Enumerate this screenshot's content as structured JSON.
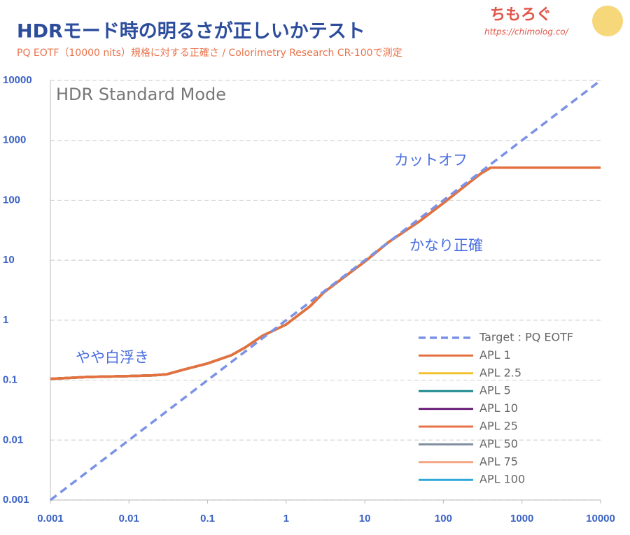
{
  "header": {
    "title": "HDRモード時の明るさが正しいかテスト",
    "subtitle": "PQ EOTF（10000 nits）規格に対する正確さ / Colorimetry Research CR-100で測定",
    "logo": "ちもろぐ",
    "url": "https://chimolog.co/"
  },
  "chart_data": {
    "type": "line",
    "plot_label": "HDR Standard Mode",
    "annotations": [
      "カットオフ",
      "かなり正確",
      "やや白浮き"
    ],
    "log_x": true,
    "log_y": true,
    "grid": true,
    "legend": "lower right",
    "x": [
      0.001,
      0.003,
      0.01,
      0.02,
      0.03,
      0.05,
      0.1,
      0.2,
      0.3,
      0.5,
      1,
      2,
      3,
      5,
      10,
      20,
      50,
      100,
      200,
      300,
      400,
      1000,
      10000
    ],
    "series": [
      {
        "name": "Target : PQ EOTF",
        "color": "#7b92e6",
        "dashed": true,
        "values": [
          0.001,
          0.003,
          0.01,
          0.02,
          0.03,
          0.05,
          0.1,
          0.2,
          0.3,
          0.5,
          1,
          2,
          3,
          5,
          10,
          20,
          50,
          100,
          200,
          300,
          400,
          1000,
          10000
        ]
      },
      {
        "name": "APL 1",
        "color": "#e5703f",
        "values": [
          0.105,
          0.113,
          0.117,
          0.12,
          0.125,
          0.15,
          0.19,
          0.26,
          0.35,
          0.55,
          0.85,
          1.7,
          2.9,
          4.8,
          9.5,
          20,
          45,
          90,
          185,
          280,
          350,
          350,
          350
        ]
      },
      {
        "name": "APL 2.5",
        "color": "#f2c12e",
        "values": [
          0.105,
          0.113,
          0.117,
          0.12,
          0.125,
          0.15,
          0.19,
          0.26,
          0.35,
          0.55,
          0.85,
          1.7,
          2.9,
          4.8,
          9.5,
          20,
          45,
          90,
          185,
          280,
          350,
          350,
          350
        ]
      },
      {
        "name": "APL 5",
        "color": "#1f8a8f",
        "values": [
          0.105,
          0.113,
          0.117,
          0.12,
          0.125,
          0.15,
          0.19,
          0.26,
          0.35,
          0.55,
          0.85,
          1.7,
          2.9,
          4.8,
          9.5,
          20,
          45,
          90,
          185,
          280,
          350,
          350,
          350
        ]
      },
      {
        "name": "APL 10",
        "color": "#6a1f7a",
        "values": [
          0.105,
          0.113,
          0.117,
          0.12,
          0.125,
          0.15,
          0.19,
          0.26,
          0.35,
          0.55,
          0.85,
          1.7,
          2.9,
          4.8,
          9.5,
          20,
          45,
          90,
          185,
          280,
          350,
          350,
          350
        ]
      },
      {
        "name": "APL 25",
        "color": "#e8734a",
        "values": [
          0.105,
          0.113,
          0.117,
          0.12,
          0.125,
          0.15,
          0.19,
          0.26,
          0.35,
          0.55,
          0.85,
          1.7,
          2.9,
          4.8,
          9.5,
          20,
          45,
          90,
          185,
          280,
          350,
          350,
          350
        ]
      },
      {
        "name": "APL 50",
        "color": "#7f8fa0",
        "values": [
          0.105,
          0.113,
          0.117,
          0.12,
          0.125,
          0.15,
          0.19,
          0.26,
          0.35,
          0.55,
          0.85,
          1.7,
          2.9,
          4.8,
          9.5,
          20,
          45,
          90,
          185,
          280,
          350,
          350,
          350
        ]
      },
      {
        "name": "APL 75",
        "color": "#f4a582",
        "values": [
          0.105,
          0.113,
          0.117,
          0.12,
          0.125,
          0.15,
          0.19,
          0.26,
          0.35,
          0.55,
          0.85,
          1.7,
          2.9,
          4.8,
          9.5,
          20,
          45,
          90,
          185,
          280,
          350,
          350,
          350
        ]
      },
      {
        "name": "APL 100",
        "color": "#2fa8d8",
        "values": [
          0.105,
          0.113,
          0.117,
          0.12,
          0.125,
          0.15,
          0.19,
          0.26,
          0.35,
          0.55,
          0.85,
          1.7,
          2.9,
          4.8,
          9.5,
          20,
          45,
          90,
          185,
          280,
          350,
          350,
          350
        ]
      }
    ],
    "xlim": [
      0.001,
      10000
    ],
    "ylim": [
      0.001,
      10000
    ],
    "xticks": [
      0.001,
      0.01,
      0.1,
      1,
      10,
      100,
      1000,
      10000
    ],
    "yticks": [
      0.001,
      0.01,
      0.1,
      1,
      10,
      100,
      1000,
      10000
    ]
  }
}
